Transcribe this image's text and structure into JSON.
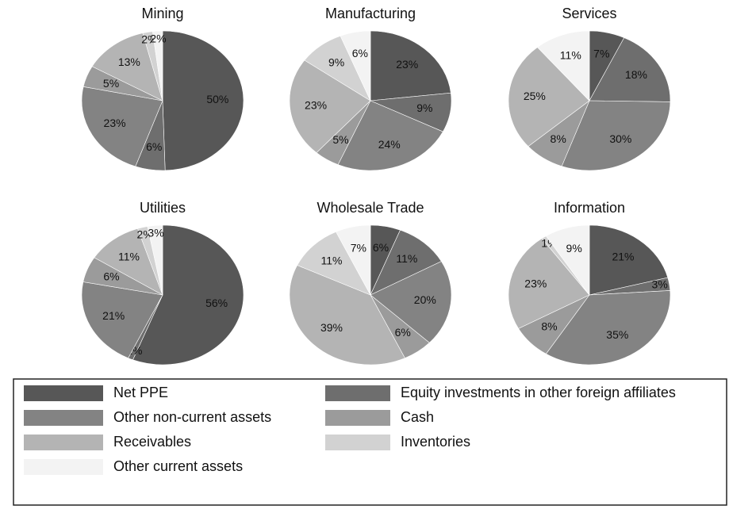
{
  "chart_data": [
    {
      "type": "pie",
      "title": "Mining",
      "values": [
        50,
        6,
        23,
        5,
        13,
        2,
        2
      ],
      "value_labels": [
        "50%",
        "6%",
        "23%",
        "5%",
        "13%",
        "2%",
        "2%"
      ]
    },
    {
      "type": "pie",
      "title": "Manufacturing",
      "values": [
        23,
        9,
        24,
        5,
        23,
        9,
        6
      ],
      "value_labels": [
        "23%",
        "9%",
        "24%",
        "5%",
        "23%",
        "9%",
        "6%"
      ]
    },
    {
      "type": "pie",
      "title": "Services",
      "values": [
        7,
        18,
        30,
        8,
        25,
        0,
        11
      ],
      "value_labels": [
        "7%",
        "18%",
        "30%",
        "8%",
        "25%",
        null,
        "11%"
      ]
    },
    {
      "type": "pie",
      "title": "Utilities",
      "values": [
        56,
        1,
        21,
        6,
        11,
        2,
        3
      ],
      "value_labels": [
        "56%",
        "1%",
        "21%",
        "6%",
        "11%",
        "2%",
        "3%"
      ]
    },
    {
      "type": "pie",
      "title": "Wholesale Trade",
      "values": [
        6,
        11,
        20,
        6,
        39,
        11,
        7
      ],
      "value_labels": [
        "6%",
        "11%",
        "20%",
        "6%",
        "39%",
        "11%",
        "7%"
      ]
    },
    {
      "type": "pie",
      "title": "Information",
      "values": [
        21,
        3,
        35,
        8,
        23,
        1,
        9
      ],
      "value_labels": [
        "21%",
        "3%",
        "35%",
        "8%",
        "23%",
        "1%",
        "9%"
      ]
    }
  ],
  "legend": {
    "categories": [
      "Net PPE",
      "Equity investments in other foreign affiliates",
      "Other non-current assets",
      "Cash",
      "Receivables",
      "Inventories",
      "Other current assets"
    ],
    "colors": [
      "#575757",
      "#6e6e6e",
      "#838383",
      "#9b9b9b",
      "#b4b4b4",
      "#d2d2d2",
      "#f3f3f3"
    ]
  }
}
